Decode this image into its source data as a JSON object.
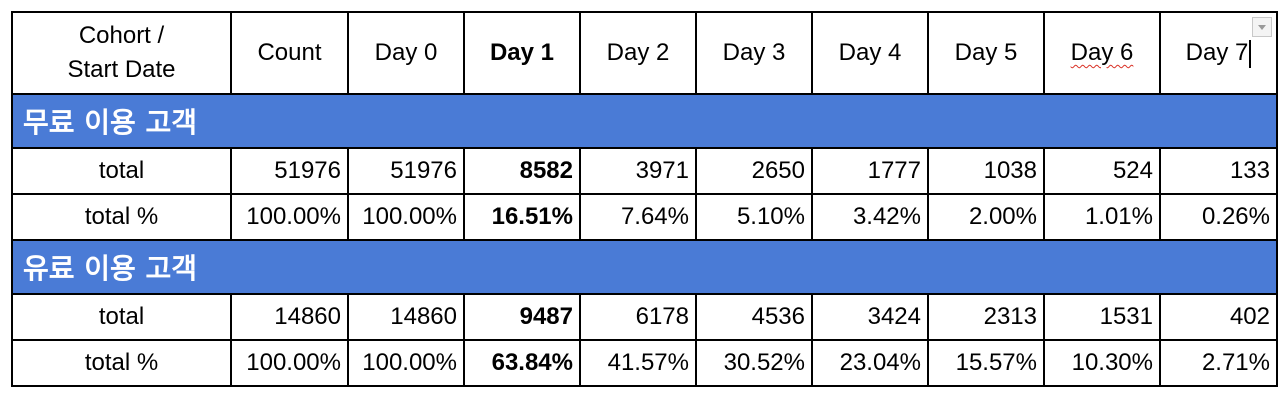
{
  "header": {
    "first_col_line1": "Cohort /",
    "first_col_line2": "Start Date",
    "columns": [
      "Count",
      "Day 0",
      "Day 1",
      "Day 2",
      "Day 3",
      "Day 4",
      "Day 5",
      "Day 6",
      "Day 7"
    ]
  },
  "sections": [
    {
      "title": "무료 이용 고객",
      "rows": [
        {
          "label": "total",
          "values": [
            "51976",
            "51976",
            "8582",
            "3971",
            "2650",
            "1777",
            "1038",
            "524",
            "133"
          ]
        },
        {
          "label": "total %",
          "values": [
            "100.00%",
            "100.00%",
            "16.51%",
            "7.64%",
            "5.10%",
            "3.42%",
            "2.00%",
            "1.01%",
            "0.26%"
          ]
        }
      ]
    },
    {
      "title": "유료 이용 고객",
      "rows": [
        {
          "label": "total",
          "values": [
            "14860",
            "14860",
            "9487",
            "6178",
            "4536",
            "3424",
            "2313",
            "1531",
            "402"
          ]
        },
        {
          "label": "total %",
          "values": [
            "100.00%",
            "100.00%",
            "63.84%",
            "41.57%",
            "30.52%",
            "23.04%",
            "15.57%",
            "10.30%",
            "2.71%"
          ]
        }
      ]
    }
  ],
  "icons": {
    "filter": "chevron-down-icon"
  },
  "colors": {
    "section_bg": "#4a7bd6",
    "section_text": "#ffffff",
    "border": "#000000",
    "spellcheck": "#d93025"
  }
}
